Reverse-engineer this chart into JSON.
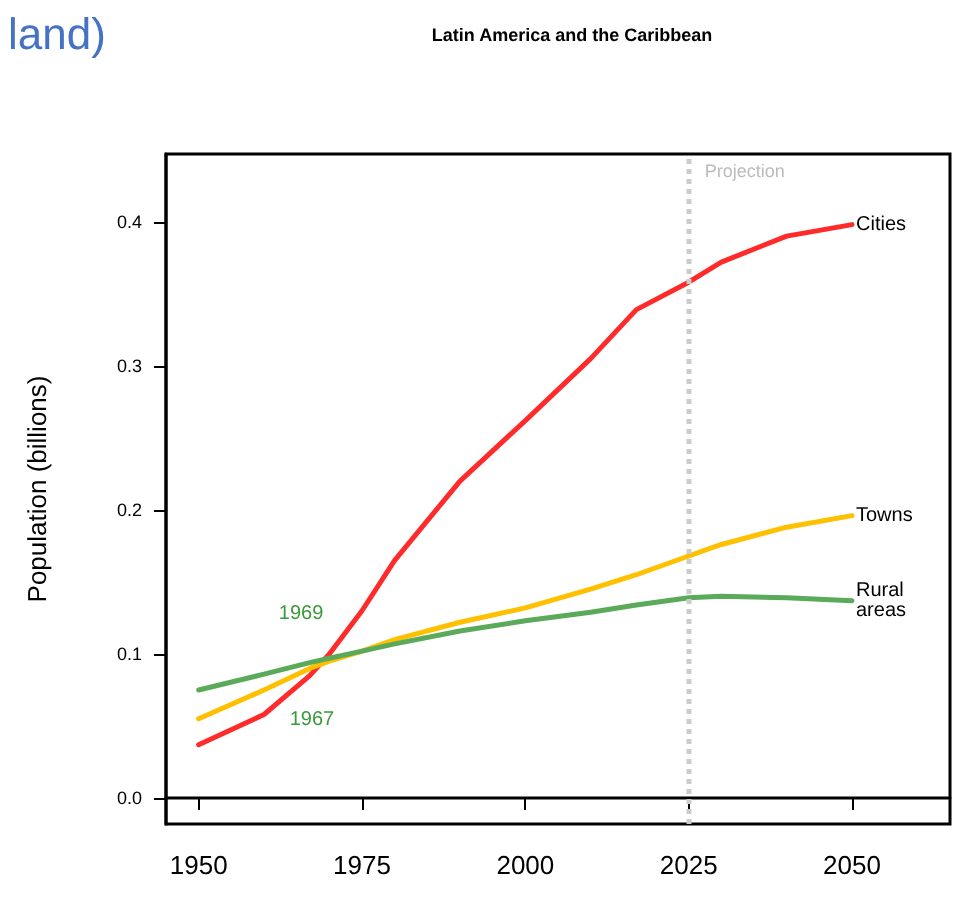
{
  "chart_data": {
    "type": "line",
    "title": "Latin America and the Caribbean",
    "ylabel": "Population (billions)",
    "x": [
      1950,
      1960,
      1967,
      1970,
      1975,
      1980,
      1990,
      2000,
      2010,
      2017,
      2025,
      2030,
      2040,
      2050
    ],
    "series": [
      {
        "name": "Cities",
        "color": "#ff2a2a",
        "values": [
          0.037,
          0.058,
          0.085,
          0.1,
          0.13,
          0.165,
          0.22,
          0.262,
          0.305,
          0.339,
          0.358,
          0.372,
          0.39,
          0.398
        ]
      },
      {
        "name": "Towns",
        "color": "#ffc000",
        "values": [
          0.055,
          0.075,
          0.09,
          0.095,
          0.102,
          0.11,
          0.122,
          0.132,
          0.145,
          0.155,
          0.168,
          0.176,
          0.188,
          0.196
        ]
      },
      {
        "name": "Rural areas",
        "color": "#5aaa5a",
        "values": [
          0.075,
          0.086,
          0.094,
          0.097,
          0.102,
          0.107,
          0.116,
          0.123,
          0.129,
          0.134,
          0.139,
          0.14,
          0.139,
          0.137
        ]
      }
    ],
    "xlim": [
      1945,
      2065
    ],
    "xticks": [
      1950,
      1975,
      2000,
      2025,
      2050
    ],
    "ylim": [
      -0.018,
      0.447
    ],
    "yticks": [
      {
        "value": 0,
        "label": "0.0"
      },
      0.1,
      0.2,
      0.3,
      0.4
    ],
    "ref_lines": [
      {
        "axis": "x",
        "value": 2025,
        "label": "Projection",
        "color": "#cccccc",
        "line_style": "dotted"
      }
    ],
    "annotations": [
      "land)",
      {
        "text": "1969",
        "x": 1969,
        "y": 0.097
      },
      {
        "text": "1967",
        "x": 1967,
        "y": 0.092
      }
    ],
    "grid": false,
    "legend": false,
    "marker": "none",
    "line_style": "solid"
  }
}
